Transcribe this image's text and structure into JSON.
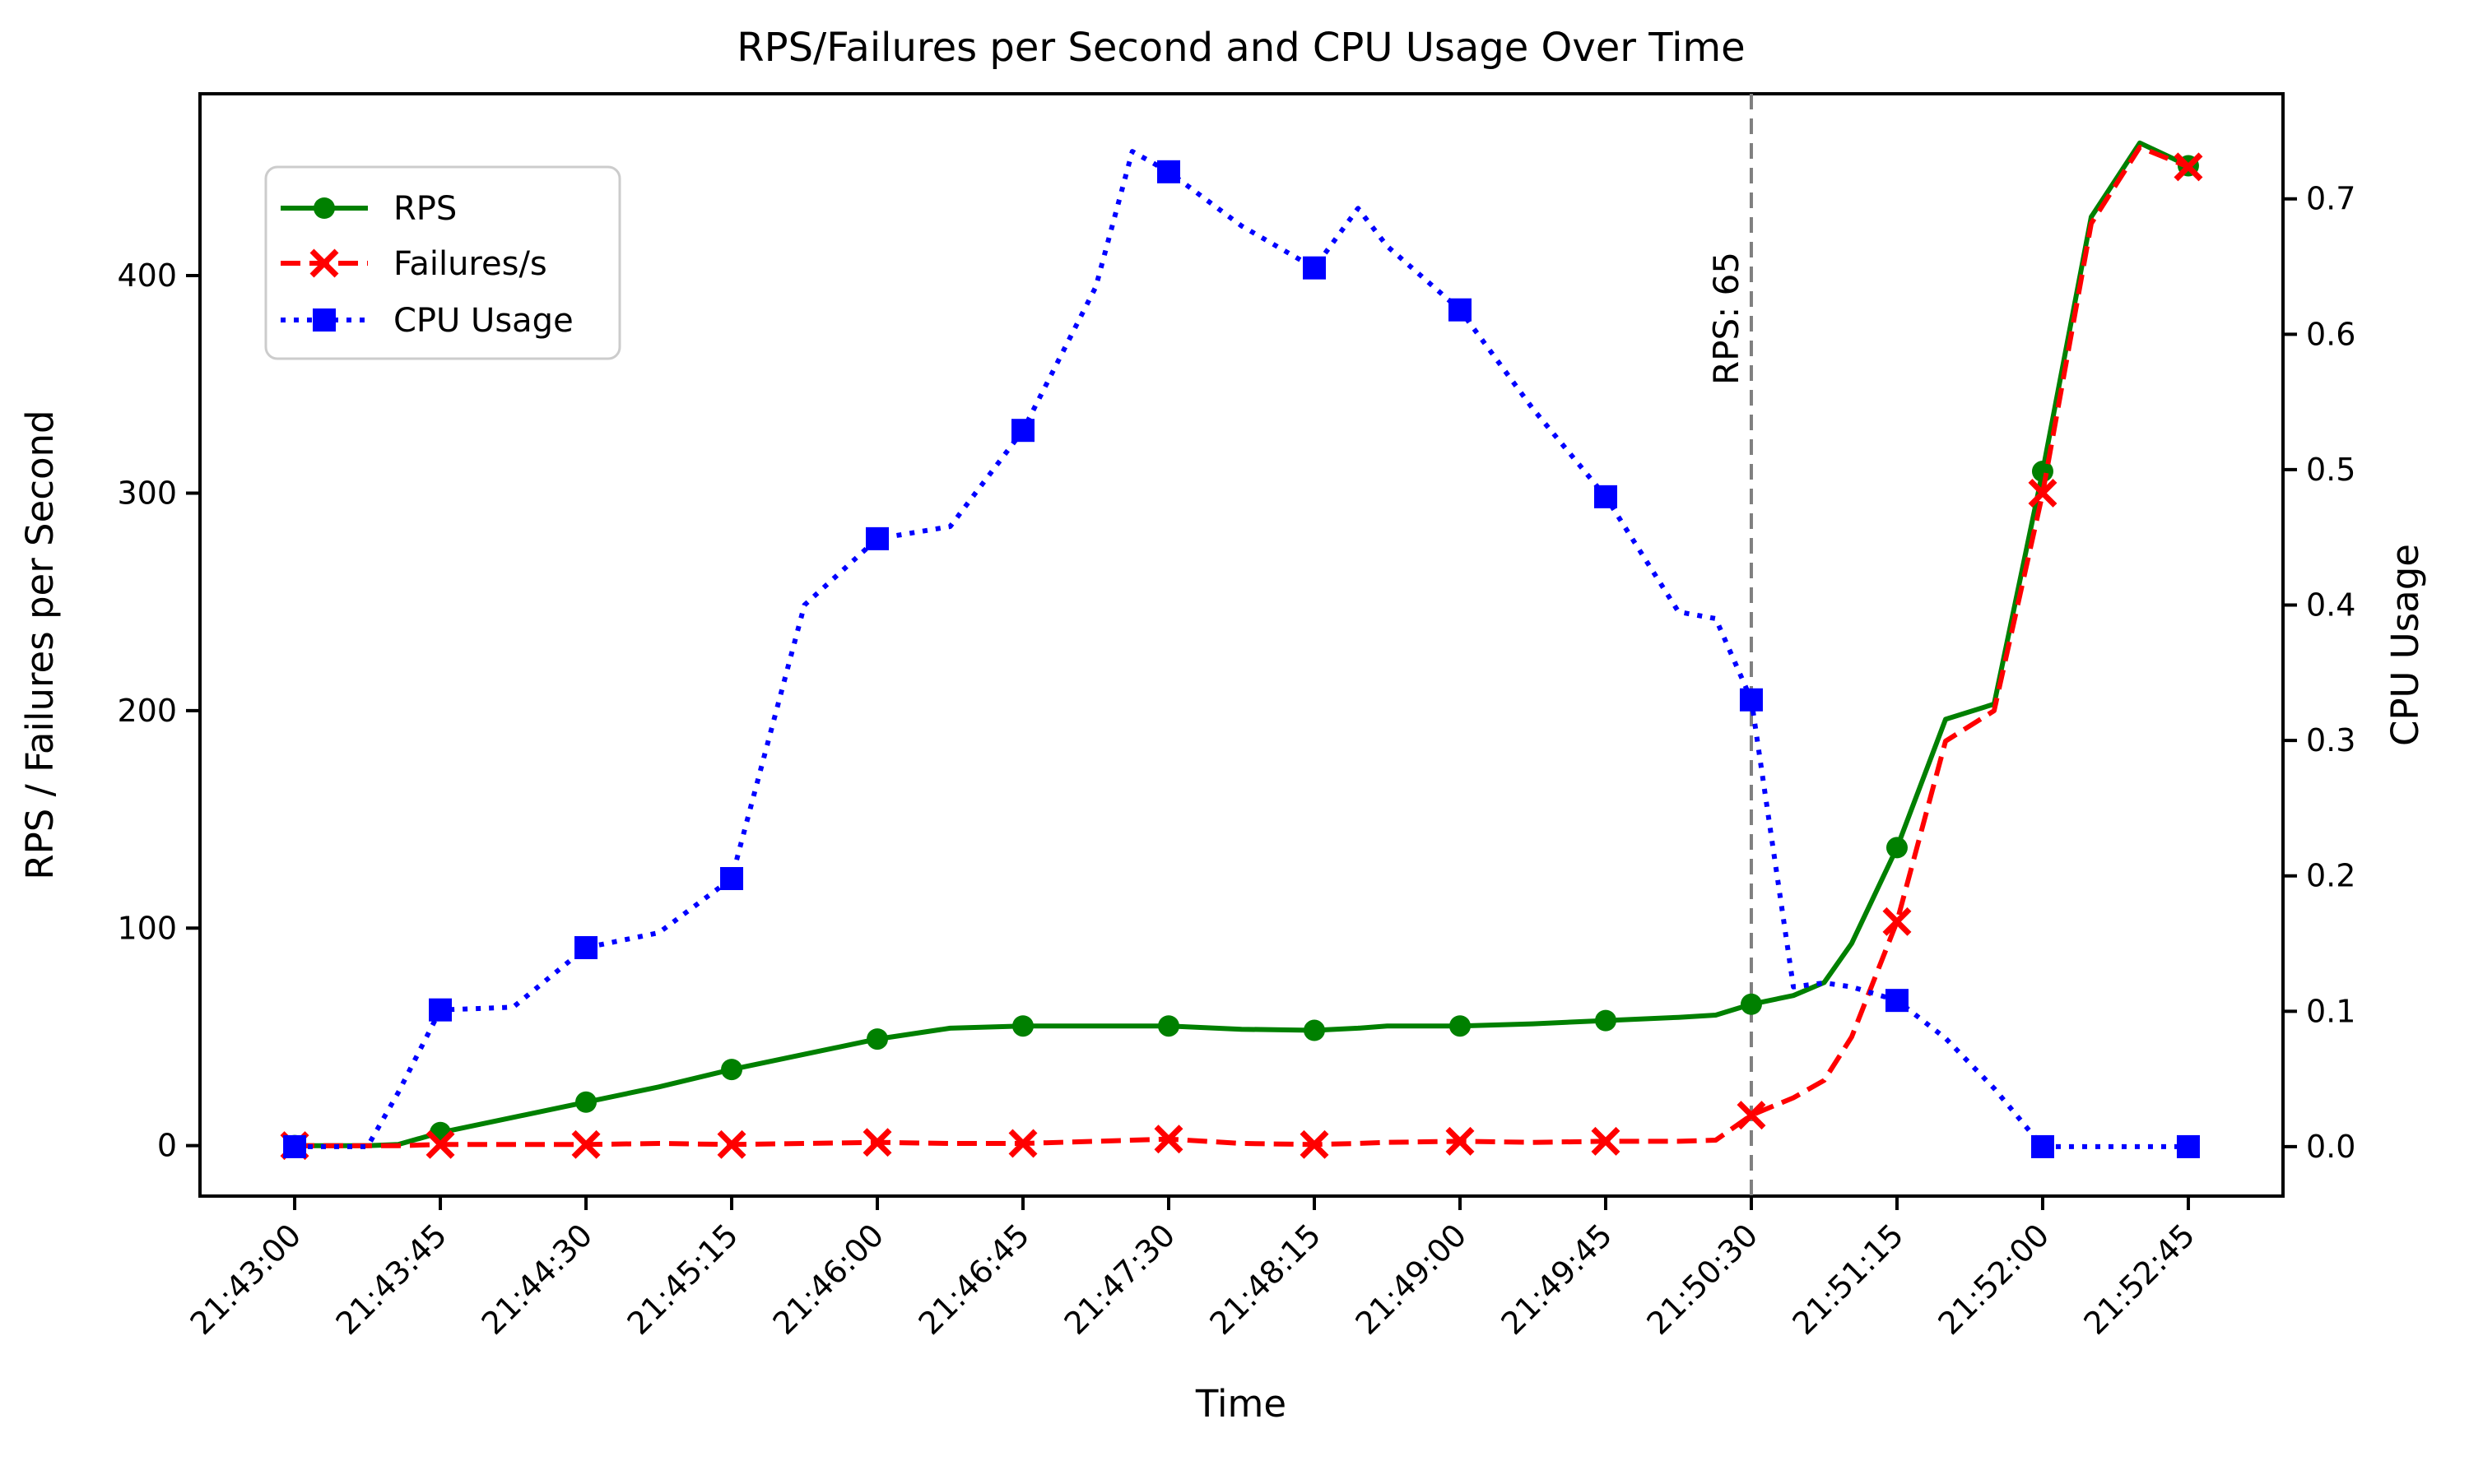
{
  "title": "RPS/Failures per Second and CPU Usage Over Time",
  "axes": {
    "x": {
      "label": "Time"
    },
    "y_left": {
      "label": "RPS / Failures per Second"
    },
    "y_right": {
      "label": "CPU Usage"
    }
  },
  "legend": {
    "items": [
      {
        "label": "RPS",
        "color": "#008000",
        "style": "solid",
        "marker": "circle-icon"
      },
      {
        "label": "Failures/s",
        "color": "#ff0000",
        "style": "dashed",
        "marker": "x-icon"
      },
      {
        "label": "CPU Usage",
        "color": "#0000ff",
        "style": "dotted",
        "marker": "square-icon"
      }
    ]
  },
  "annotation": {
    "text": "RPS: 65",
    "t_seconds": 450,
    "line_color": "#808080"
  },
  "colors": {
    "rps": "#008000",
    "failures": "#ff0000",
    "cpu": "#0000ff",
    "vline": "#808080",
    "legend_border": "#cccccc",
    "text": "#000000"
  },
  "chart_data": {
    "type": "line",
    "title": "RPS/Failures per Second and CPU Usage Over Time",
    "xlabel": "Time",
    "ylabel_left": "RPS / Failures per Second",
    "ylabel_right": "CPU Usage",
    "grid": false,
    "legend_position": "upper left",
    "x_unit": "seconds since 21:43:00",
    "xlim": [
      -29.25,
      614.25
    ],
    "ylim_left": [
      -23.2,
      483.6
    ],
    "ylim_right": [
      -0.0365,
      0.7776
    ],
    "x_ticks": [
      {
        "t": 0,
        "label": "21:43:00"
      },
      {
        "t": 45,
        "label": "21:43:45"
      },
      {
        "t": 90,
        "label": "21:44:30"
      },
      {
        "t": 135,
        "label": "21:45:15"
      },
      {
        "t": 180,
        "label": "21:46:00"
      },
      {
        "t": 225,
        "label": "21:46:45"
      },
      {
        "t": 270,
        "label": "21:47:30"
      },
      {
        "t": 315,
        "label": "21:48:15"
      },
      {
        "t": 360,
        "label": "21:49:00"
      },
      {
        "t": 405,
        "label": "21:49:45"
      },
      {
        "t": 450,
        "label": "21:50:30"
      },
      {
        "t": 495,
        "label": "21:51:15"
      },
      {
        "t": 540,
        "label": "21:52:00"
      },
      {
        "t": 585,
        "label": "21:52:45"
      }
    ],
    "y_ticks_left": [
      {
        "v": 0,
        "label": "0"
      },
      {
        "v": 100,
        "label": "100"
      },
      {
        "v": 200,
        "label": "200"
      },
      {
        "v": 300,
        "label": "300"
      },
      {
        "v": 400,
        "label": "400"
      }
    ],
    "y_ticks_right": [
      {
        "v": 0.0,
        "label": "0.0"
      },
      {
        "v": 0.1,
        "label": "0.1"
      },
      {
        "v": 0.2,
        "label": "0.2"
      },
      {
        "v": 0.3,
        "label": "0.3"
      },
      {
        "v": 0.4,
        "label": "0.4"
      },
      {
        "v": 0.5,
        "label": "0.5"
      },
      {
        "v": 0.6,
        "label": "0.6"
      },
      {
        "v": 0.7,
        "label": "0.7"
      }
    ],
    "marker_every_seconds": 45,
    "series": [
      {
        "name": "RPS",
        "axis": "left",
        "color": "#008000",
        "style": "solid",
        "marker": "circle",
        "points": [
          [
            0,
            0
          ],
          [
            22.5,
            0
          ],
          [
            32,
            0.5
          ],
          [
            45,
            6
          ],
          [
            67.5,
            13
          ],
          [
            90,
            20
          ],
          [
            112.5,
            27
          ],
          [
            135,
            35
          ],
          [
            157.5,
            42
          ],
          [
            180,
            49
          ],
          [
            202.5,
            54
          ],
          [
            225,
            55
          ],
          [
            247.5,
            55
          ],
          [
            258.75,
            55
          ],
          [
            270,
            55
          ],
          [
            292.5,
            53.5
          ],
          [
            315,
            53
          ],
          [
            328.5,
            54
          ],
          [
            337.5,
            55
          ],
          [
            360,
            55
          ],
          [
            382.5,
            56
          ],
          [
            405,
            57.5
          ],
          [
            427.5,
            59
          ],
          [
            439,
            60
          ],
          [
            450,
            65
          ],
          [
            463,
            69
          ],
          [
            472.5,
            75
          ],
          [
            481,
            93
          ],
          [
            495,
            137
          ],
          [
            510,
            196
          ],
          [
            525,
            203
          ],
          [
            540,
            310
          ],
          [
            555,
            427
          ],
          [
            570,
            461
          ],
          [
            585,
            450.5
          ]
        ]
      },
      {
        "name": "Failures/s",
        "axis": "left",
        "color": "#ff0000",
        "style": "dashed",
        "marker": "x",
        "points": [
          [
            0,
            0
          ],
          [
            22.5,
            0
          ],
          [
            32,
            0
          ],
          [
            45,
            0.5
          ],
          [
            67.5,
            0.5
          ],
          [
            90,
            0.5
          ],
          [
            112.5,
            1
          ],
          [
            135,
            0.5
          ],
          [
            157.5,
            1
          ],
          [
            180,
            1.5
          ],
          [
            202.5,
            1
          ],
          [
            225,
            1
          ],
          [
            247.5,
            2
          ],
          [
            258.75,
            2.5
          ],
          [
            270,
            3
          ],
          [
            292.5,
            1
          ],
          [
            315,
            0.5
          ],
          [
            328.5,
            1
          ],
          [
            337.5,
            1.5
          ],
          [
            360,
            2
          ],
          [
            382.5,
            1.5
          ],
          [
            405,
            2
          ],
          [
            427.5,
            2
          ],
          [
            439,
            2.5
          ],
          [
            450,
            14
          ],
          [
            463,
            22
          ],
          [
            472.5,
            30
          ],
          [
            481,
            50
          ],
          [
            495,
            103
          ],
          [
            510,
            186
          ],
          [
            525,
            200
          ],
          [
            540,
            300
          ],
          [
            555,
            424
          ],
          [
            570,
            459
          ],
          [
            585,
            450
          ]
        ]
      },
      {
        "name": "CPU Usage",
        "axis": "right",
        "color": "#0000ff",
        "style": "dotted",
        "marker": "square",
        "points": [
          [
            0,
            0.0
          ],
          [
            22.5,
            0.0
          ],
          [
            32,
            0.04
          ],
          [
            45,
            0.101
          ],
          [
            67.5,
            0.103
          ],
          [
            90,
            0.147
          ],
          [
            112.5,
            0.158
          ],
          [
            135,
            0.198
          ],
          [
            157.5,
            0.4
          ],
          [
            180,
            0.449
          ],
          [
            202.5,
            0.458
          ],
          [
            225,
            0.529
          ],
          [
            247.5,
            0.635
          ],
          [
            258.75,
            0.735
          ],
          [
            270,
            0.72
          ],
          [
            292.5,
            0.68
          ],
          [
            315,
            0.649
          ],
          [
            328.5,
            0.693
          ],
          [
            337.5,
            0.665
          ],
          [
            360,
            0.618
          ],
          [
            382.5,
            0.545
          ],
          [
            405,
            0.48
          ],
          [
            427.5,
            0.395
          ],
          [
            439,
            0.39
          ],
          [
            450,
            0.33
          ],
          [
            463,
            0.118
          ],
          [
            472.5,
            0.121
          ],
          [
            481,
            0.118
          ],
          [
            495,
            0.108
          ],
          [
            510,
            0.08
          ],
          [
            525,
            0.043
          ],
          [
            540,
            0.0
          ],
          [
            555,
            0.0
          ],
          [
            570,
            0.0
          ],
          [
            585,
            0.0
          ]
        ]
      }
    ]
  }
}
